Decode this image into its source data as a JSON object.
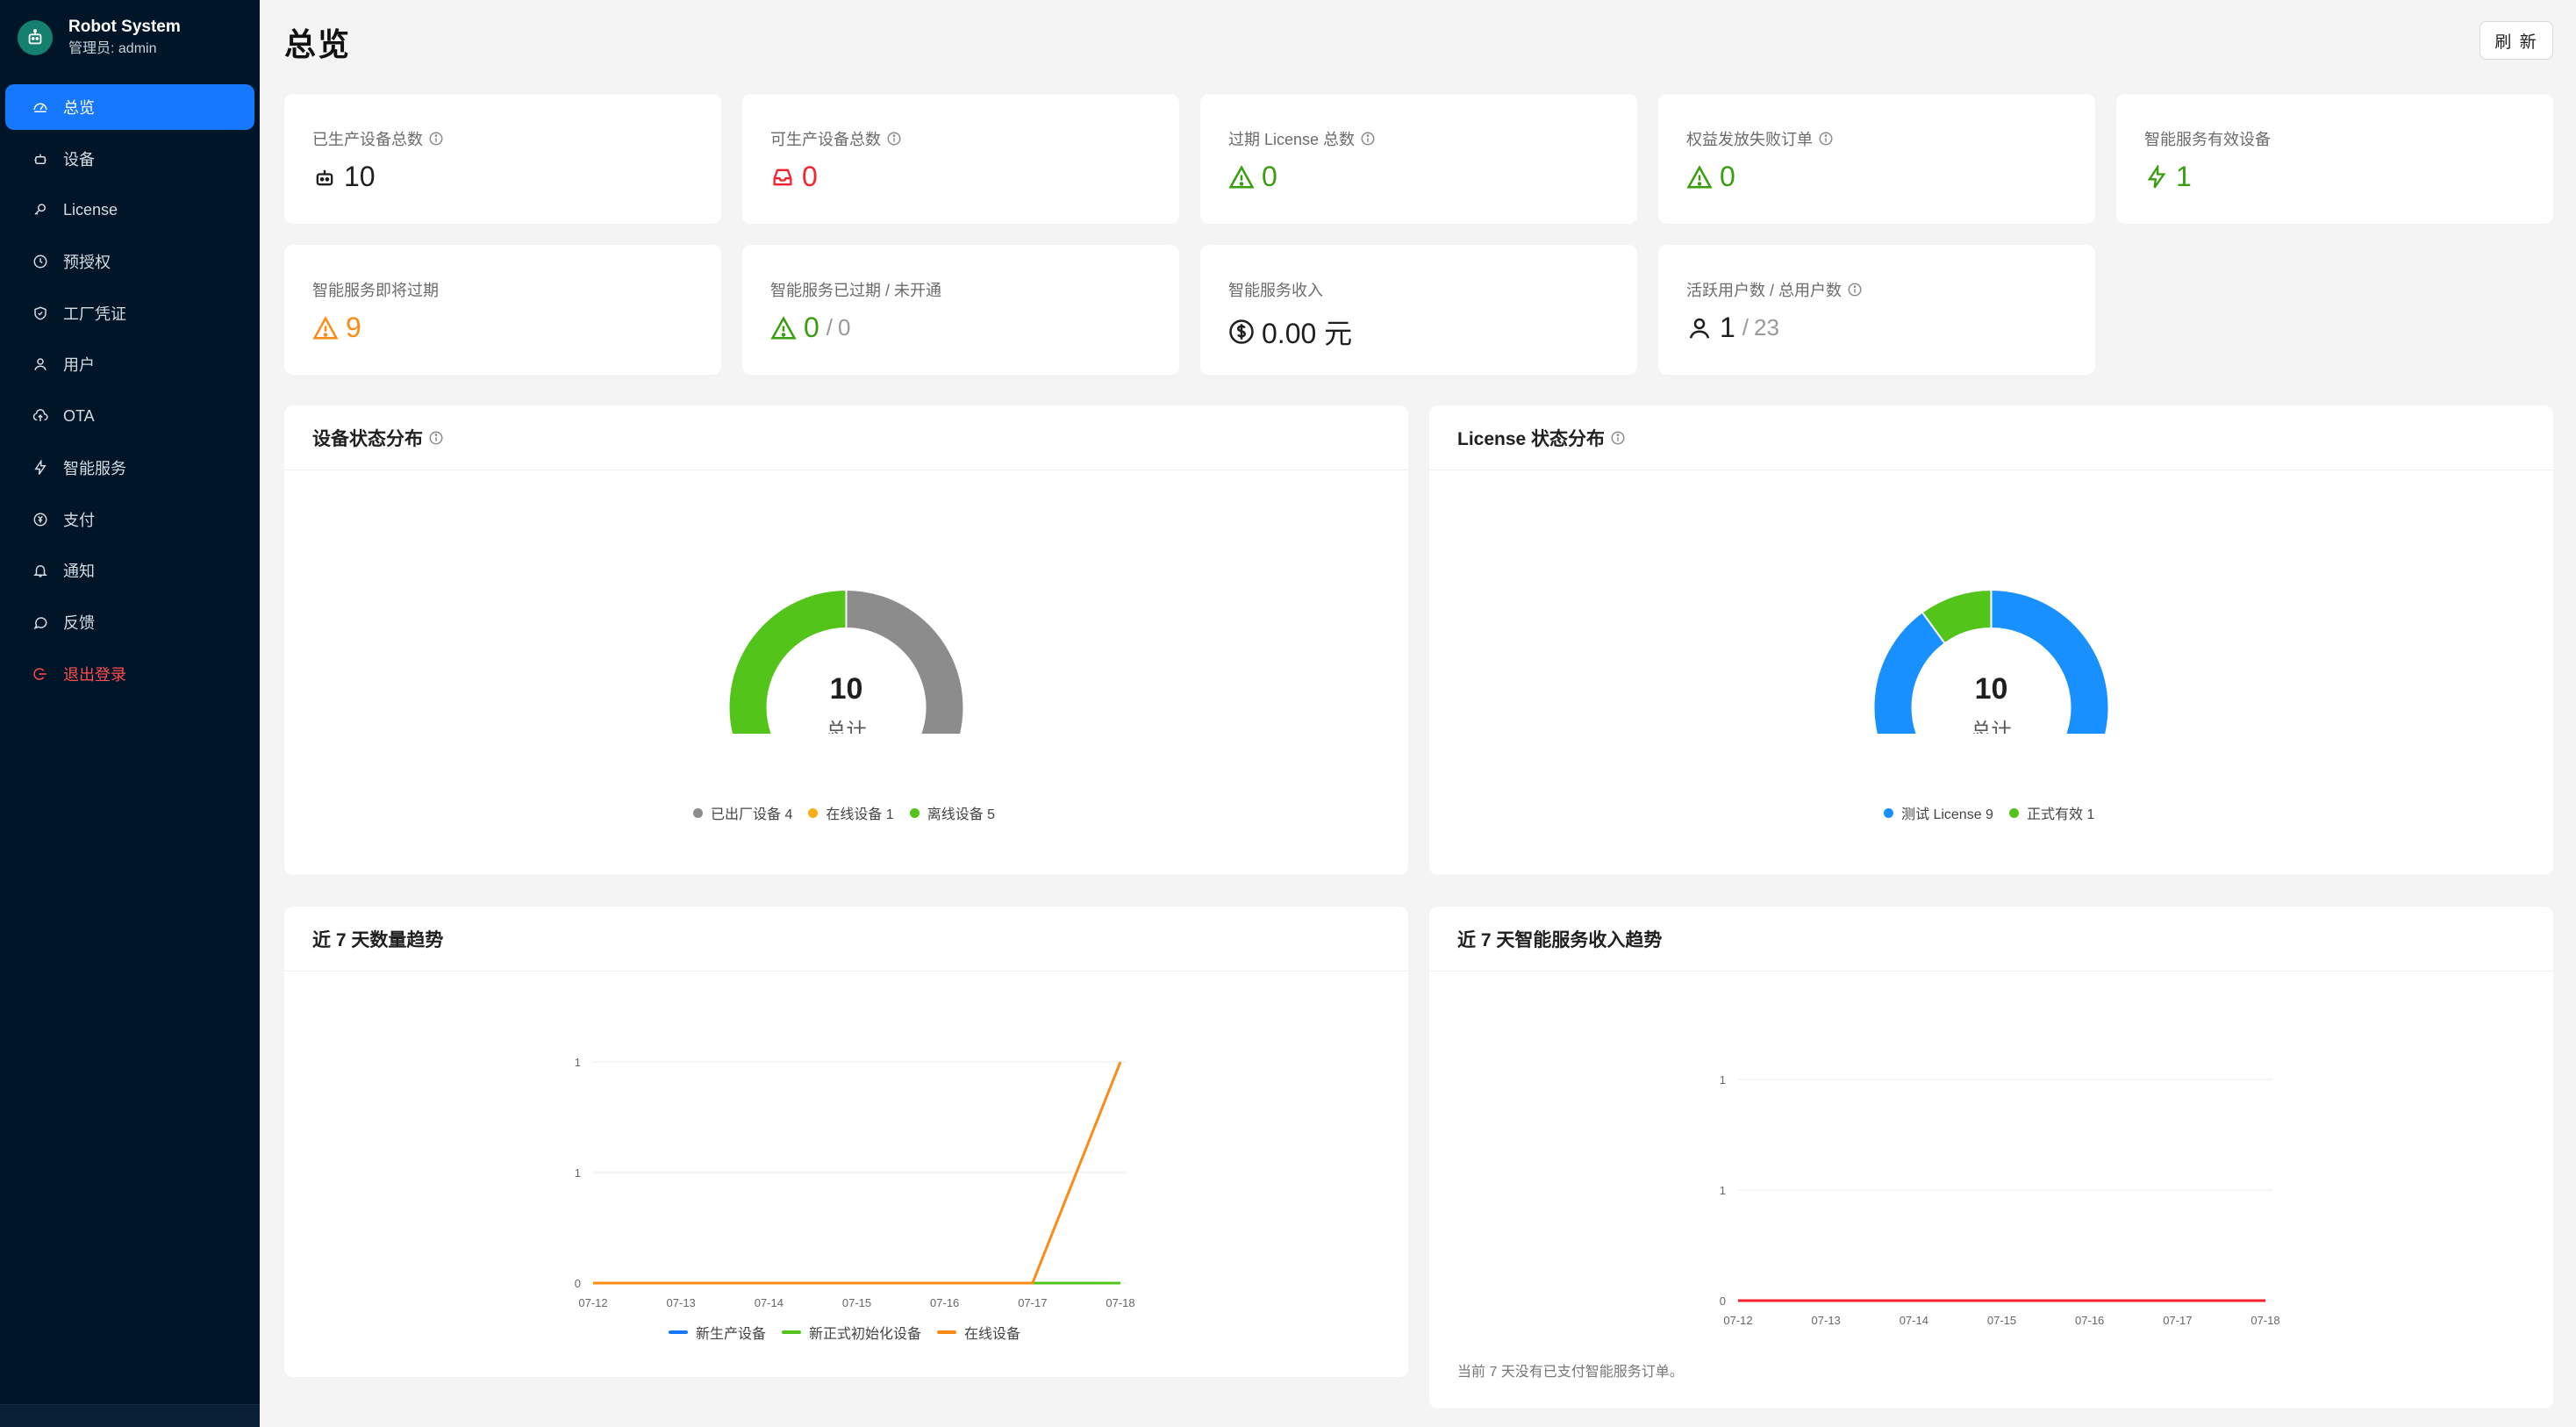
{
  "app": {
    "title": "Robot System",
    "admin_label": "管理员: admin",
    "colors": {
      "sidebar": "#011528",
      "accent": "#1677ff",
      "green": "#52c41a",
      "red": "#f5222d",
      "orange": "#fa8c16",
      "gray": "#8c8c8c",
      "yellow": "#faad14"
    }
  },
  "sidebar": {
    "items": [
      {
        "label": "总览",
        "icon": "dashboard-icon",
        "active": true
      },
      {
        "label": "设备",
        "icon": "robot-icon"
      },
      {
        "label": "License",
        "icon": "key-icon"
      },
      {
        "label": "预授权",
        "icon": "clock-icon"
      },
      {
        "label": "工厂凭证",
        "icon": "shield-icon"
      },
      {
        "label": "用户",
        "icon": "user-icon"
      },
      {
        "label": "OTA",
        "icon": "cloud-upload-icon"
      },
      {
        "label": "智能服务",
        "icon": "thunderbolt-icon"
      },
      {
        "label": "支付",
        "icon": "yuan-circle-icon"
      },
      {
        "label": "通知",
        "icon": "bell-icon"
      },
      {
        "label": "反馈",
        "icon": "message-icon"
      },
      {
        "label": "退出登录",
        "icon": "logout-icon"
      }
    ]
  },
  "header": {
    "title": "总览",
    "refresh_label": "刷 新"
  },
  "stats": [
    {
      "label": "已生产设备总数",
      "value": "10",
      "icon": "robot-icon"
    },
    {
      "label": "可生产设备总数",
      "value": "0",
      "icon": "inbox-icon"
    },
    {
      "label": "过期 License 总数",
      "value": "0",
      "icon": "warning-icon"
    },
    {
      "label": "权益发放失败订单",
      "value": "0",
      "icon": "warning-icon"
    },
    {
      "label": "智能服务有效设备",
      "value": "1",
      "icon": "thunderbolt-icon"
    },
    {
      "label": "智能服务即将过期",
      "value": "9",
      "icon": "warning-icon"
    },
    {
      "label": "智能服务已过期 / 未开通",
      "value": "0",
      "sep": "/",
      "total": "0",
      "icon": "warning-icon"
    },
    {
      "label": "智能服务收入",
      "value": "0.00 元",
      "icon": "dollar-circle-icon"
    },
    {
      "label": "活跃用户数 / 总用户数",
      "value": "1",
      "sep": "/",
      "total": "23",
      "icon": "user-icon"
    }
  ],
  "device_status": {
    "title": "设备状态分布",
    "center_value": "10",
    "center_label": "总计",
    "legend": [
      "已出厂设备 4",
      "在线设备 1",
      "离线设备 5"
    ]
  },
  "license_status": {
    "title": "License 状态分布",
    "center_value": "10",
    "center_label": "总计",
    "legend": [
      "测试 License 9",
      "正式有效 1"
    ]
  },
  "trend": {
    "title": "近 7 天数量趋势",
    "legend": [
      "新生产设备",
      "新正式初始化设备",
      "在线设备"
    ]
  },
  "revenue": {
    "title": "近 7 天智能服务收入趋势",
    "empty_note": "当前 7 天没有已支付智能服务订单。"
  },
  "chart_data": [
    {
      "type": "pie",
      "title": "设备状态分布",
      "categories": [
        "已出厂设备",
        "在线设备",
        "离线设备"
      ],
      "values": [
        4,
        1,
        5
      ],
      "colors": [
        "#8c8c8c",
        "#faad14",
        "#52c41a"
      ]
    },
    {
      "type": "pie",
      "title": "License 状态分布",
      "categories": [
        "测试 License",
        "正式有效"
      ],
      "values": [
        9,
        1
      ],
      "colors": [
        "#1890ff",
        "#52c41a"
      ]
    },
    {
      "type": "line",
      "title": "近 7 天数量趋势",
      "x": [
        "07-12",
        "07-13",
        "07-14",
        "07-15",
        "07-16",
        "07-17",
        "07-18"
      ],
      "ytick_labels": [
        "0",
        "1",
        "1"
      ],
      "ylim": [
        0,
        1
      ],
      "series": [
        {
          "name": "新生产设备",
          "values": [
            0,
            0,
            0,
            0,
            0,
            0,
            0
          ],
          "color": "#1677ff"
        },
        {
          "name": "新正式初始化设备",
          "values": [
            0,
            0,
            0,
            0,
            0,
            0,
            0
          ],
          "color": "#52c41a"
        },
        {
          "name": "在线设备",
          "values": [
            0,
            0,
            0,
            0,
            0,
            0,
            1
          ],
          "color": "#fa8c16"
        }
      ]
    },
    {
      "type": "line",
      "title": "近 7 天智能服务收入趋势",
      "x": [
        "07-12",
        "07-13",
        "07-14",
        "07-15",
        "07-16",
        "07-17",
        "07-18"
      ],
      "ytick_labels": [
        "0",
        "1",
        "1"
      ],
      "ylim": [
        0,
        1
      ],
      "series": [
        {
          "values": [
            0,
            0,
            0,
            0,
            0,
            0,
            0
          ],
          "color": "#f5222d"
        }
      ]
    }
  ]
}
